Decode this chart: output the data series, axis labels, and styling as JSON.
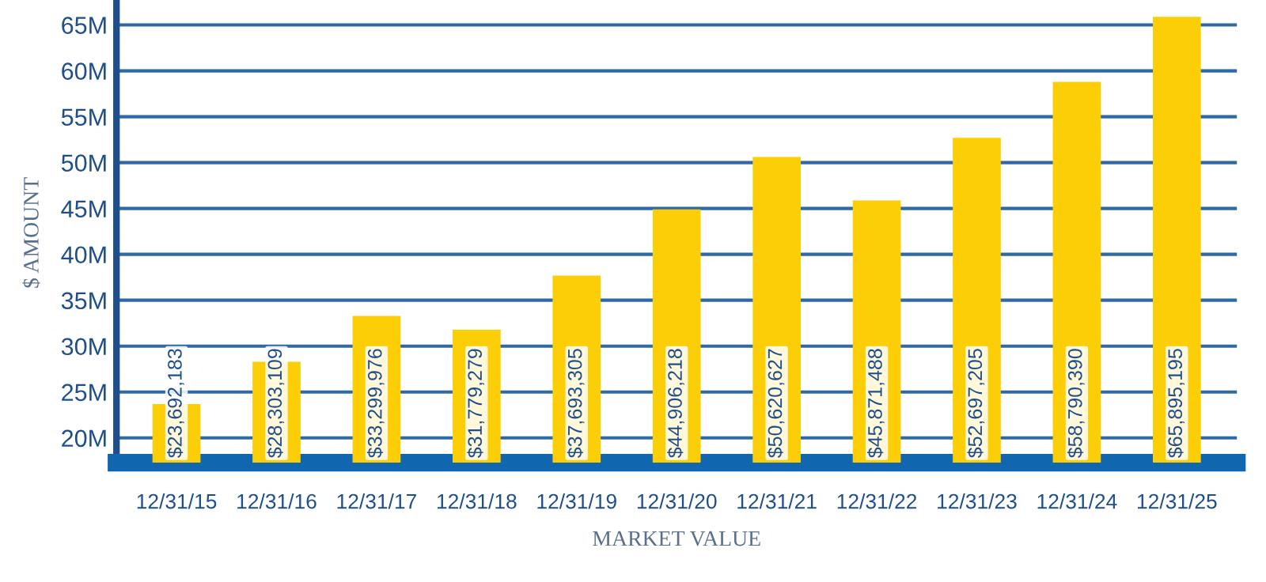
{
  "chart_data": {
    "type": "bar",
    "xlabel": "MARKET VALUE",
    "ylabel": "$ AMOUNT",
    "categories": [
      "12/31/15",
      "12/31/16",
      "12/31/17",
      "12/31/18",
      "12/31/19",
      "12/31/20",
      "12/31/21",
      "12/31/22",
      "12/31/23",
      "12/31/24",
      "12/31/25"
    ],
    "series": [
      {
        "color": "#fcce07",
        "values": [
          23692183,
          28303109,
          33299976,
          31779279,
          37693305,
          44906218,
          50620627,
          45871488,
          52697205,
          58790390,
          65895195
        ]
      }
    ],
    "value_labels": [
      "$23,692,183",
      "$28,303,109",
      "$33,299,976",
      "$31,779,279",
      "$37,693,305",
      "$44,906,218",
      "$50,620,627",
      "$45,871,488",
      "$52,697,205",
      "$58,790,390",
      "$65,895,195"
    ],
    "ylim": [
      17300000,
      67400000
    ],
    "yticks": [
      {
        "value": 20000000,
        "label": "20M"
      },
      {
        "value": 25000000,
        "label": "25M"
      },
      {
        "value": 30000000,
        "label": "30M"
      },
      {
        "value": 35000000,
        "label": "35M"
      },
      {
        "value": 40000000,
        "label": "40M"
      },
      {
        "value": 45000000,
        "label": "45M"
      },
      {
        "value": 50000000,
        "label": "50M"
      },
      {
        "value": 55000000,
        "label": "55M"
      },
      {
        "value": 60000000,
        "label": "60M"
      },
      {
        "value": 65000000,
        "label": "65M"
      }
    ],
    "grid": "y",
    "legend": false
  }
}
